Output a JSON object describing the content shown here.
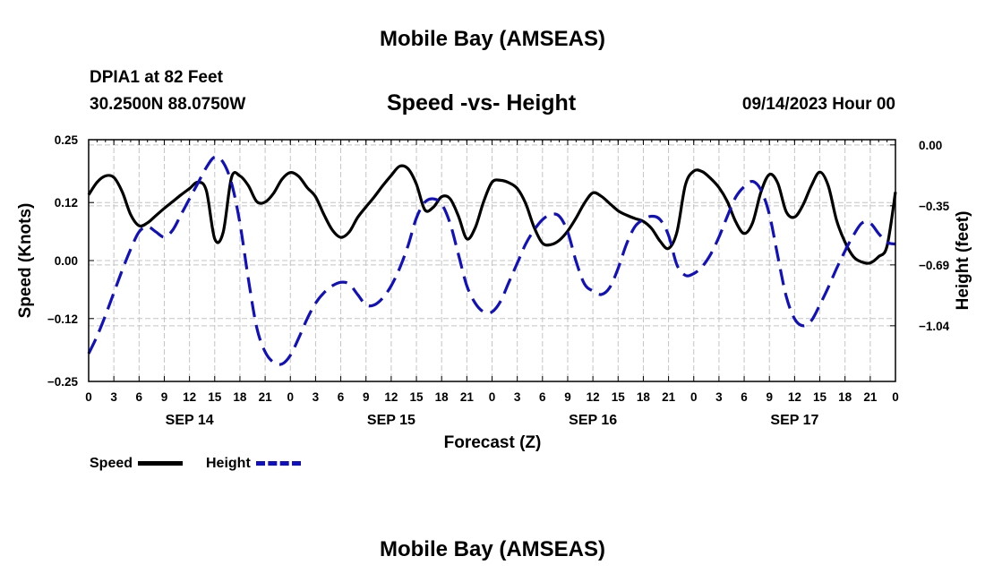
{
  "page": {
    "title": "Mobile Bay (AMSEAS)",
    "footer_title": "Mobile Bay (AMSEAS)",
    "station": "DPIA1 at 82 Feet",
    "coords": "30.2500N  88.0750W",
    "subtitle": "Speed -vs- Height",
    "run_time": "09/14/2023 Hour 00"
  },
  "legend": {
    "speed_label": "Speed",
    "height_label": "Height"
  },
  "chart_data": {
    "type": "line",
    "title": "Speed -vs- Height",
    "xlabel": "Forecast (Z)",
    "ylabel_left": "Speed (Knots)",
    "ylabel_right": "Height (feet)",
    "x_unit": "hours from 09/14/2023 00Z",
    "x_range": [
      0,
      96
    ],
    "x_tick_step": 3,
    "x_tick_labels": [
      "0",
      "3",
      "6",
      "9",
      "12",
      "15",
      "18",
      "21",
      "0",
      "3",
      "6",
      "9",
      "12",
      "15",
      "18",
      "21",
      "0",
      "3",
      "6",
      "9",
      "12",
      "15",
      "18",
      "21",
      "0",
      "3",
      "6",
      "9",
      "12",
      "15",
      "18",
      "21",
      "0"
    ],
    "date_labels": [
      {
        "hour": 12,
        "label": "SEP 14"
      },
      {
        "hour": 36,
        "label": "SEP 15"
      },
      {
        "hour": 60,
        "label": "SEP 16"
      },
      {
        "hour": 84,
        "label": "SEP 17"
      }
    ],
    "y_left_range": [
      -0.25,
      0.25
    ],
    "y_left_ticks": [
      -0.25,
      -0.12,
      0.0,
      0.12,
      0.25
    ],
    "y_left_tick_labels": [
      "−0.25",
      "−0.12",
      "0.00",
      "0.12",
      "0.25"
    ],
    "y_right_range": [
      -1.36,
      0.03
    ],
    "y_right_ticks": [
      0.0,
      -0.35,
      -0.69,
      -1.04
    ],
    "y_right_tick_labels": [
      "0.00",
      "−0.35",
      "−0.69",
      "−1.04"
    ],
    "grid": true,
    "series": [
      {
        "name": "Speed",
        "axis": "left",
        "color": "#000000",
        "style": "solid",
        "points": [
          [
            0,
            0.136
          ],
          [
            1,
            0.162
          ],
          [
            2,
            0.175
          ],
          [
            3,
            0.172
          ],
          [
            4,
            0.142
          ],
          [
            5,
            0.095
          ],
          [
            6,
            0.072
          ],
          [
            7,
            0.078
          ],
          [
            8,
            0.093
          ],
          [
            9,
            0.108
          ],
          [
            10,
            0.122
          ],
          [
            11,
            0.136
          ],
          [
            12,
            0.149
          ],
          [
            13,
            0.162
          ],
          [
            14,
            0.145
          ],
          [
            15,
            0.045
          ],
          [
            16,
            0.058
          ],
          [
            17,
            0.172
          ],
          [
            18,
            0.175
          ],
          [
            19,
            0.155
          ],
          [
            20,
            0.122
          ],
          [
            21,
            0.121
          ],
          [
            22,
            0.139
          ],
          [
            23,
            0.168
          ],
          [
            24,
            0.182
          ],
          [
            25,
            0.174
          ],
          [
            26,
            0.151
          ],
          [
            27,
            0.132
          ],
          [
            28,
            0.095
          ],
          [
            29,
            0.063
          ],
          [
            30,
            0.048
          ],
          [
            31,
            0.059
          ],
          [
            32,
            0.089
          ],
          [
            33,
            0.111
          ],
          [
            34,
            0.132
          ],
          [
            35,
            0.155
          ],
          [
            36,
            0.176
          ],
          [
            37,
            0.195
          ],
          [
            38,
            0.19
          ],
          [
            39,
            0.158
          ],
          [
            40,
            0.105
          ],
          [
            41,
            0.11
          ],
          [
            42,
            0.132
          ],
          [
            43,
            0.128
          ],
          [
            44,
            0.092
          ],
          [
            45,
            0.045
          ],
          [
            46,
            0.068
          ],
          [
            47,
            0.122
          ],
          [
            48,
            0.162
          ],
          [
            49,
            0.166
          ],
          [
            50,
            0.161
          ],
          [
            51,
            0.149
          ],
          [
            52,
            0.118
          ],
          [
            53,
            0.069
          ],
          [
            54,
            0.036
          ],
          [
            55,
            0.033
          ],
          [
            56,
            0.042
          ],
          [
            57,
            0.061
          ],
          [
            58,
            0.088
          ],
          [
            59,
            0.119
          ],
          [
            60,
            0.14
          ],
          [
            61,
            0.133
          ],
          [
            62,
            0.118
          ],
          [
            63,
            0.103
          ],
          [
            64,
            0.094
          ],
          [
            65,
            0.087
          ],
          [
            66,
            0.081
          ],
          [
            67,
            0.066
          ],
          [
            68,
            0.04
          ],
          [
            69,
            0.025
          ],
          [
            70,
            0.059
          ],
          [
            71,
            0.156
          ],
          [
            72,
            0.185
          ],
          [
            73,
            0.184
          ],
          [
            74,
            0.17
          ],
          [
            75,
            0.151
          ],
          [
            76,
            0.122
          ],
          [
            77,
            0.08
          ],
          [
            78,
            0.056
          ],
          [
            79,
            0.078
          ],
          [
            80,
            0.142
          ],
          [
            81,
            0.178
          ],
          [
            82,
            0.16
          ],
          [
            83,
            0.101
          ],
          [
            84,
            0.09
          ],
          [
            85,
            0.115
          ],
          [
            86,
            0.155
          ],
          [
            87,
            0.183
          ],
          [
            88,
            0.155
          ],
          [
            89,
            0.083
          ],
          [
            90,
            0.038
          ],
          [
            91,
            0.008
          ],
          [
            92,
            -0.003
          ],
          [
            93,
            -0.005
          ],
          [
            94,
            0.008
          ],
          [
            95,
            0.03
          ],
          [
            96,
            0.142
          ]
        ]
      },
      {
        "name": "Height",
        "axis": "right",
        "color": "#1010c0",
        "style": "dashed",
        "points": [
          [
            0,
            -1.2
          ],
          [
            1,
            -1.1
          ],
          [
            2,
            -0.98
          ],
          [
            3,
            -0.85
          ],
          [
            4,
            -0.72
          ],
          [
            5,
            -0.6
          ],
          [
            6,
            -0.5
          ],
          [
            7,
            -0.47
          ],
          [
            8,
            -0.5
          ],
          [
            9,
            -0.53
          ],
          [
            10,
            -0.49
          ],
          [
            11,
            -0.4
          ],
          [
            12,
            -0.31
          ],
          [
            13,
            -0.22
          ],
          [
            14,
            -0.13
          ],
          [
            15,
            -0.07
          ],
          [
            16,
            -0.1
          ],
          [
            17,
            -0.22
          ],
          [
            18,
            -0.45
          ],
          [
            19,
            -0.77
          ],
          [
            20,
            -1.05
          ],
          [
            21,
            -1.19
          ],
          [
            22,
            -1.25
          ],
          [
            23,
            -1.26
          ],
          [
            24,
            -1.21
          ],
          [
            25,
            -1.11
          ],
          [
            26,
            -1.0
          ],
          [
            27,
            -0.91
          ],
          [
            28,
            -0.85
          ],
          [
            29,
            -0.81
          ],
          [
            30,
            -0.79
          ],
          [
            31,
            -0.8
          ],
          [
            32,
            -0.86
          ],
          [
            33,
            -0.92
          ],
          [
            34,
            -0.92
          ],
          [
            35,
            -0.88
          ],
          [
            36,
            -0.81
          ],
          [
            37,
            -0.71
          ],
          [
            38,
            -0.58
          ],
          [
            39,
            -0.42
          ],
          [
            40,
            -0.33
          ],
          [
            41,
            -0.31
          ],
          [
            42,
            -0.34
          ],
          [
            43,
            -0.45
          ],
          [
            44,
            -0.63
          ],
          [
            45,
            -0.81
          ],
          [
            46,
            -0.91
          ],
          [
            47,
            -0.96
          ],
          [
            48,
            -0.96
          ],
          [
            49,
            -0.9
          ],
          [
            50,
            -0.79
          ],
          [
            51,
            -0.68
          ],
          [
            52,
            -0.57
          ],
          [
            53,
            -0.49
          ],
          [
            54,
            -0.43
          ],
          [
            55,
            -0.4
          ],
          [
            56,
            -0.41
          ],
          [
            57,
            -0.5
          ],
          [
            58,
            -0.67
          ],
          [
            59,
            -0.8
          ],
          [
            60,
            -0.84
          ],
          [
            61,
            -0.86
          ],
          [
            62,
            -0.82
          ],
          [
            63,
            -0.71
          ],
          [
            64,
            -0.57
          ],
          [
            65,
            -0.47
          ],
          [
            66,
            -0.43
          ],
          [
            67,
            -0.41
          ],
          [
            68,
            -0.43
          ],
          [
            69,
            -0.52
          ],
          [
            70,
            -0.69
          ],
          [
            71,
            -0.75
          ],
          [
            72,
            -0.74
          ],
          [
            73,
            -0.7
          ],
          [
            74,
            -0.63
          ],
          [
            75,
            -0.53
          ],
          [
            76,
            -0.41
          ],
          [
            77,
            -0.3
          ],
          [
            78,
            -0.24
          ],
          [
            79,
            -0.21
          ],
          [
            80,
            -0.26
          ],
          [
            81,
            -0.4
          ],
          [
            82,
            -0.64
          ],
          [
            83,
            -0.87
          ],
          [
            84,
            -1.0
          ],
          [
            85,
            -1.04
          ],
          [
            86,
            -1.01
          ],
          [
            87,
            -0.92
          ],
          [
            88,
            -0.82
          ],
          [
            89,
            -0.71
          ],
          [
            90,
            -0.61
          ],
          [
            91,
            -0.52
          ],
          [
            92,
            -0.45
          ],
          [
            93,
            -0.45
          ],
          [
            94,
            -0.51
          ],
          [
            95,
            -0.56
          ],
          [
            96,
            -0.57
          ]
        ]
      }
    ]
  }
}
